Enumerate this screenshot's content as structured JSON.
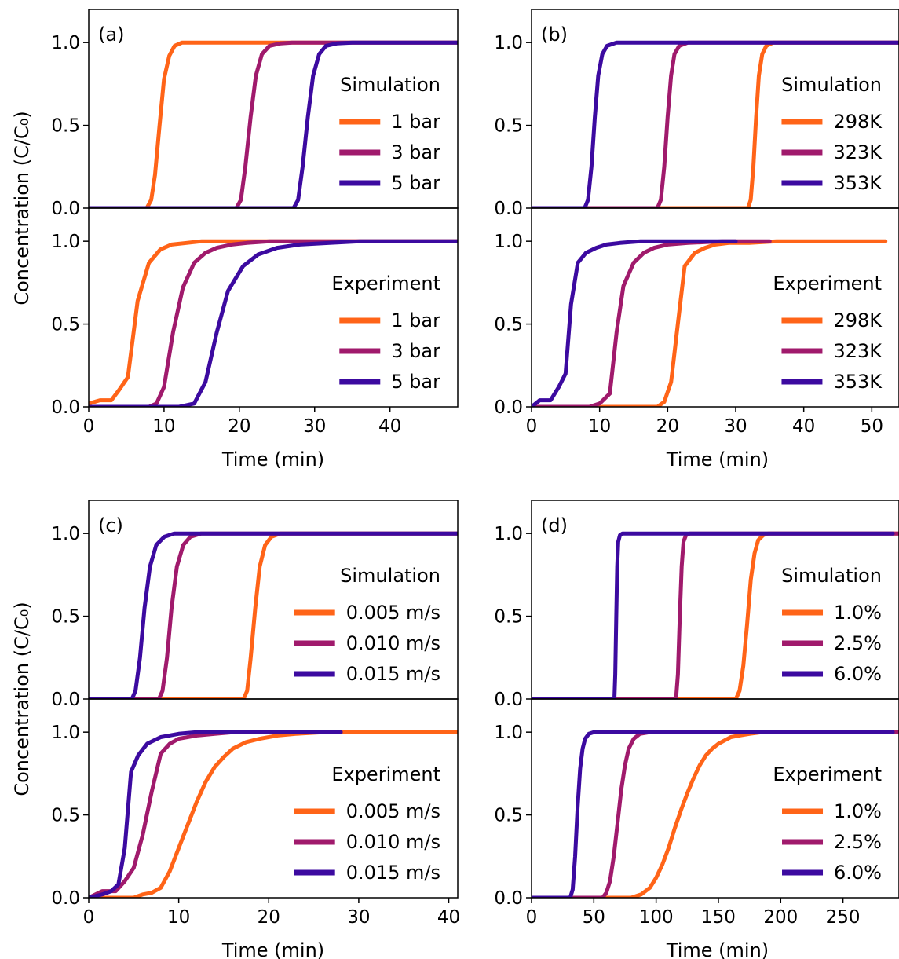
{
  "figure": {
    "ylabel": "Concentration (C/C₀)",
    "xlabel": "Time (min)"
  },
  "colors": {
    "orange": "#ff6418",
    "magenta": "#a01a6c",
    "indigo": "#3c0aa0"
  },
  "chart_data": [
    {
      "type": "line",
      "panel": "(a)",
      "subplot": "top",
      "legend_title": "Simulation",
      "legend_position": "right",
      "xlim": [
        0,
        49
      ],
      "ylim": [
        0,
        1.2
      ],
      "xticks": [],
      "yticks": [
        0.0,
        0.5,
        1.0
      ],
      "series": [
        {
          "name": "1 bar",
          "color": "#ff6418",
          "x": [
            0,
            7.7,
            8.3,
            8.8,
            9.4,
            10.0,
            10.7,
            11.4,
            12.4,
            14,
            49
          ],
          "y": [
            0,
            0,
            0.05,
            0.2,
            0.5,
            0.78,
            0.92,
            0.98,
            1.0,
            1.0,
            1.0
          ]
        },
        {
          "name": "3 bar",
          "color": "#a01a6c",
          "x": [
            0,
            19.6,
            20.2,
            20.8,
            21.5,
            22.2,
            23.0,
            24.0,
            25.5,
            27,
            49
          ],
          "y": [
            0,
            0,
            0.05,
            0.25,
            0.55,
            0.8,
            0.93,
            0.98,
            0.995,
            1.0,
            1.0
          ]
        },
        {
          "name": "5 bar",
          "color": "#3c0aa0",
          "x": [
            0,
            27.2,
            27.8,
            28.4,
            29.1,
            29.8,
            30.6,
            31.5,
            33,
            35,
            49
          ],
          "y": [
            0,
            0,
            0.05,
            0.25,
            0.55,
            0.8,
            0.93,
            0.98,
            0.995,
            1.0,
            1.0
          ]
        }
      ]
    },
    {
      "type": "line",
      "panel": "",
      "subplot": "bottom",
      "legend_title": "Experiment",
      "legend_position": "right",
      "xlim": [
        0,
        49
      ],
      "ylim": [
        0,
        1.2
      ],
      "xticks": [
        0,
        10,
        20,
        30,
        40
      ],
      "yticks": [
        0.0,
        0.5,
        1.0
      ],
      "series": [
        {
          "name": "1 bar",
          "color": "#ff6418",
          "x": [
            0,
            1.5,
            3,
            4,
            5.2,
            6.5,
            8,
            9.5,
            11,
            13,
            15,
            18,
            22,
            30,
            49
          ],
          "y": [
            0.02,
            0.04,
            0.04,
            0.1,
            0.18,
            0.64,
            0.87,
            0.95,
            0.98,
            0.99,
            1.0,
            1.0,
            1.0,
            1.0,
            1.0
          ]
        },
        {
          "name": "3 bar",
          "color": "#a01a6c",
          "x": [
            0,
            8,
            9,
            10,
            11.2,
            12.5,
            14,
            15.5,
            17,
            19,
            21,
            24,
            30,
            49
          ],
          "y": [
            0,
            0,
            0.02,
            0.12,
            0.45,
            0.72,
            0.87,
            0.93,
            0.96,
            0.98,
            0.99,
            1.0,
            1.0,
            1.0
          ]
        },
        {
          "name": "5 bar",
          "color": "#3c0aa0",
          "x": [
            0,
            12,
            14,
            15.5,
            17,
            18.5,
            20.5,
            22.5,
            25,
            28,
            32,
            36,
            43,
            49
          ],
          "y": [
            0,
            0,
            0.02,
            0.15,
            0.45,
            0.7,
            0.85,
            0.92,
            0.96,
            0.98,
            0.99,
            1.0,
            1.0,
            1.0
          ]
        }
      ]
    },
    {
      "type": "line",
      "panel": "(b)",
      "subplot": "top",
      "legend_title": "Simulation",
      "legend_position": "right",
      "xlim": [
        0,
        54
      ],
      "ylim": [
        0,
        1.2
      ],
      "xticks": [],
      "yticks": [
        0.0,
        0.5,
        1.0
      ],
      "series": [
        {
          "name": "298K",
          "color": "#ff6418",
          "x": [
            0,
            31.8,
            32.2,
            32.6,
            33.0,
            33.4,
            33.9,
            34.5,
            35.5,
            54
          ],
          "y": [
            0,
            0,
            0.05,
            0.25,
            0.55,
            0.8,
            0.93,
            0.98,
            1.0,
            1.0
          ]
        },
        {
          "name": "323K",
          "color": "#a01a6c",
          "x": [
            0,
            18.5,
            19.0,
            19.5,
            20.0,
            20.5,
            21.0,
            21.7,
            23,
            54
          ],
          "y": [
            0,
            0,
            0.05,
            0.25,
            0.55,
            0.8,
            0.93,
            0.98,
            1.0,
            1.0
          ]
        },
        {
          "name": "353K",
          "color": "#3c0aa0",
          "x": [
            0,
            7.8,
            8.3,
            8.8,
            9.3,
            9.8,
            10.4,
            11.1,
            12.5,
            54
          ],
          "y": [
            0,
            0,
            0.05,
            0.25,
            0.55,
            0.8,
            0.93,
            0.98,
            1.0,
            1.0
          ]
        }
      ]
    },
    {
      "type": "line",
      "panel": "",
      "subplot": "bottom",
      "legend_title": "Experiment",
      "legend_position": "right",
      "xlim": [
        0,
        54
      ],
      "ylim": [
        0,
        1.2
      ],
      "xticks": [
        0,
        10,
        20,
        30,
        40,
        50
      ],
      "yticks": [
        0.0,
        0.5,
        1.0
      ],
      "series": [
        {
          "name": "298K",
          "color": "#ff6418",
          "x": [
            0,
            18.5,
            19.5,
            20.5,
            21.5,
            22.5,
            24,
            25.5,
            27,
            29,
            32,
            36,
            42,
            52
          ],
          "y": [
            0,
            0,
            0.03,
            0.15,
            0.5,
            0.85,
            0.93,
            0.96,
            0.98,
            0.99,
            0.99,
            1.0,
            1.0,
            1.0
          ]
        },
        {
          "name": "323K",
          "color": "#a01a6c",
          "x": [
            0,
            8.5,
            10,
            11.5,
            12.5,
            13.5,
            15,
            16.5,
            18,
            20,
            23,
            28,
            35
          ],
          "y": [
            0,
            0,
            0.02,
            0.08,
            0.45,
            0.73,
            0.87,
            0.93,
            0.96,
            0.98,
            0.99,
            1.0,
            1.0
          ]
        },
        {
          "name": "353K",
          "color": "#3c0aa0",
          "x": [
            0,
            1.2,
            2.8,
            4,
            5,
            5.8,
            6.8,
            8,
            9.5,
            11,
            13,
            16,
            20,
            30
          ],
          "y": [
            0,
            0.04,
            0.04,
            0.12,
            0.2,
            0.62,
            0.87,
            0.93,
            0.96,
            0.98,
            0.99,
            1.0,
            1.0,
            1.0
          ]
        }
      ]
    },
    {
      "type": "line",
      "panel": "(c)",
      "subplot": "top",
      "legend_title": "Simulation",
      "legend_position": "right",
      "xlim": [
        0,
        41
      ],
      "ylim": [
        0,
        1.2
      ],
      "xticks": [],
      "yticks": [
        0.0,
        0.5,
        1.0
      ],
      "series": [
        {
          "name": "0.005 m/s",
          "color": "#ff6418",
          "x": [
            0,
            17.2,
            17.6,
            18.0,
            18.5,
            19.0,
            19.6,
            20.3,
            21.3,
            23,
            41
          ],
          "y": [
            0,
            0,
            0.05,
            0.25,
            0.55,
            0.8,
            0.93,
            0.98,
            1.0,
            1.0,
            1.0
          ]
        },
        {
          "name": "0.010 m/s",
          "color": "#a01a6c",
          "x": [
            0,
            7.8,
            8.2,
            8.7,
            9.2,
            9.8,
            10.5,
            11.3,
            12.5,
            14,
            41
          ],
          "y": [
            0,
            0,
            0.05,
            0.25,
            0.55,
            0.8,
            0.93,
            0.98,
            1.0,
            1.0,
            1.0
          ]
        },
        {
          "name": "0.015 m/s",
          "color": "#3c0aa0",
          "x": [
            0,
            4.8,
            5.2,
            5.7,
            6.2,
            6.8,
            7.5,
            8.4,
            9.5,
            11,
            41
          ],
          "y": [
            0,
            0,
            0.05,
            0.25,
            0.55,
            0.8,
            0.93,
            0.98,
            1.0,
            1.0,
            1.0
          ]
        }
      ]
    },
    {
      "type": "line",
      "panel": "",
      "subplot": "bottom",
      "legend_title": "Experiment",
      "legend_position": "right",
      "xlim": [
        0,
        41
      ],
      "ylim": [
        0,
        1.2
      ],
      "xticks": [
        0,
        10,
        20,
        30,
        40
      ],
      "yticks": [
        0.0,
        0.5,
        1.0
      ],
      "series": [
        {
          "name": "0.005 m/s",
          "color": "#ff6418",
          "x": [
            0,
            5,
            6,
            7,
            8,
            9,
            10,
            11,
            12,
            13,
            14,
            15,
            16,
            17.5,
            19,
            21,
            23,
            26,
            29,
            32,
            41
          ],
          "y": [
            0,
            0,
            0.02,
            0.03,
            0.06,
            0.16,
            0.3,
            0.44,
            0.58,
            0.7,
            0.79,
            0.85,
            0.9,
            0.94,
            0.96,
            0.98,
            0.99,
            1.0,
            1.0,
            1.0,
            1.0
          ]
        },
        {
          "name": "0.010 m/s",
          "color": "#a01a6c",
          "x": [
            0,
            1.5,
            3,
            4,
            5,
            6,
            7,
            8,
            9,
            10,
            12,
            14,
            16,
            20,
            28
          ],
          "y": [
            0,
            0.04,
            0.04,
            0.1,
            0.18,
            0.38,
            0.64,
            0.87,
            0.93,
            0.96,
            0.98,
            0.99,
            1.0,
            1.0,
            1.0
          ]
        },
        {
          "name": "0.015 m/s",
          "color": "#3c0aa0",
          "x": [
            0,
            1.5,
            2.5,
            3.3,
            4,
            4.7,
            5.5,
            6.5,
            8,
            10,
            12,
            15,
            20,
            28
          ],
          "y": [
            0,
            0.02,
            0.04,
            0.08,
            0.3,
            0.76,
            0.86,
            0.93,
            0.97,
            0.99,
            1.0,
            1.0,
            1.0,
            1.0
          ]
        }
      ]
    },
    {
      "type": "line",
      "panel": "(d)",
      "subplot": "top",
      "legend_title": "Simulation",
      "legend_position": "right",
      "xlim": [
        0,
        295
      ],
      "ylim": [
        0,
        1.2
      ],
      "xticks": [],
      "yticks": [
        0.0,
        0.5,
        1.0
      ],
      "series": [
        {
          "name": "1.0%",
          "color": "#ff6418",
          "x": [
            0,
            164,
            167,
            170,
            173,
            176,
            179,
            182,
            186,
            190,
            295
          ],
          "y": [
            0,
            0,
            0.05,
            0.2,
            0.45,
            0.72,
            0.88,
            0.96,
            0.99,
            1.0,
            1.0
          ]
        },
        {
          "name": "2.5%",
          "color": "#a01a6c",
          "x": [
            0,
            116,
            117.5,
            119,
            120.5,
            122,
            124,
            127,
            295
          ],
          "y": [
            0,
            0,
            0.15,
            0.5,
            0.8,
            0.95,
            0.99,
            1.0,
            1.0
          ]
        },
        {
          "name": "6.0%",
          "color": "#3c0aa0",
          "x": [
            0,
            66.5,
            67.2,
            68,
            68.8,
            69.6,
            71,
            73,
            290
          ],
          "y": [
            0,
            0,
            0.15,
            0.5,
            0.8,
            0.95,
            0.99,
            1.0,
            1.0
          ]
        }
      ]
    },
    {
      "type": "line",
      "panel": "",
      "subplot": "bottom",
      "legend_title": "Experiment",
      "legend_position": "right",
      "xlim": [
        0,
        295
      ],
      "ylim": [
        0,
        1.2
      ],
      "xticks": [
        0,
        50,
        100,
        150,
        200,
        250
      ],
      "yticks": [
        0.0,
        0.5,
        1.0
      ],
      "series": [
        {
          "name": "1.0%",
          "color": "#ff6418",
          "x": [
            0,
            80,
            88,
            95,
            100,
            105,
            110,
            115,
            120,
            125,
            130,
            135,
            140,
            145,
            150,
            155,
            160,
            167,
            175,
            185,
            195,
            295
          ],
          "y": [
            0,
            0,
            0.02,
            0.06,
            0.12,
            0.2,
            0.3,
            0.42,
            0.53,
            0.63,
            0.72,
            0.8,
            0.86,
            0.9,
            0.93,
            0.95,
            0.97,
            0.98,
            0.99,
            1.0,
            1.0,
            1.0
          ]
        },
        {
          "name": "2.5%",
          "color": "#a01a6c",
          "x": [
            0,
            57,
            60,
            63,
            66,
            69,
            72,
            75,
            78,
            82,
            87,
            95,
            110,
            295
          ],
          "y": [
            0,
            0,
            0.03,
            0.1,
            0.25,
            0.45,
            0.65,
            0.8,
            0.9,
            0.96,
            0.99,
            1.0,
            1.0,
            1.0
          ]
        },
        {
          "name": "6.0%",
          "color": "#3c0aa0",
          "x": [
            0,
            31,
            33,
            35,
            37,
            39,
            41,
            43,
            46,
            50,
            55,
            65,
            290
          ],
          "y": [
            0,
            0,
            0.05,
            0.25,
            0.55,
            0.78,
            0.9,
            0.96,
            0.99,
            1.0,
            1.0,
            1.0,
            1.0
          ]
        }
      ]
    }
  ]
}
